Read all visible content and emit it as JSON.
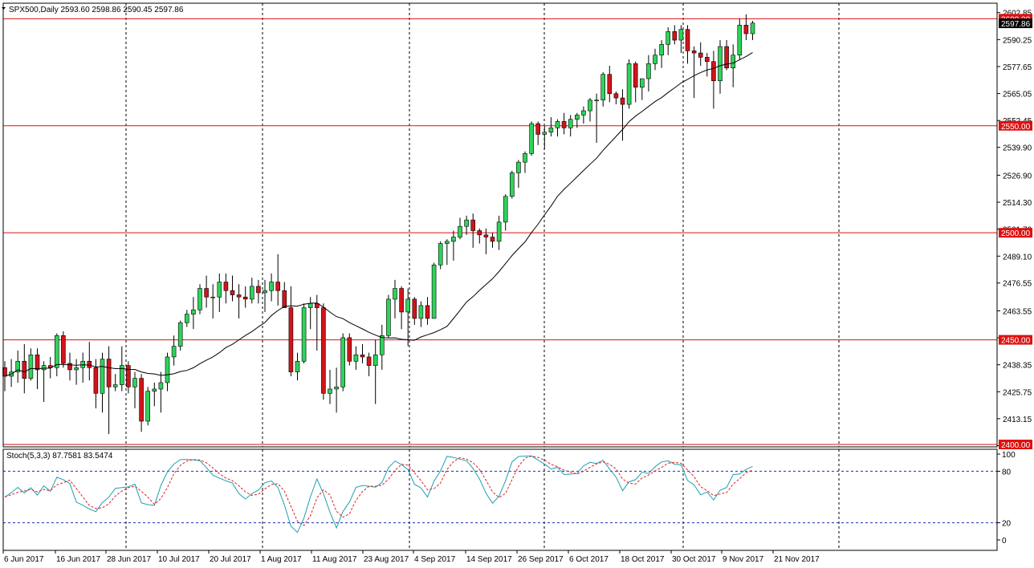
{
  "chart_data": [
    {
      "type": "candlestick",
      "title": "SPX500,Daily",
      "ohlc_label": "2593.60 2598.86 2590.45 2597.86",
      "ylim": [
        2400.0,
        2605.0
      ],
      "yticks": [
        "2602.85",
        "2590.25",
        "2577.65",
        "2565.05",
        "2552.45",
        "2539.90",
        "2526.90",
        "2514.30",
        "2501.70",
        "2489.10",
        "2476.55",
        "2463.55",
        "2450.95",
        "2438.35",
        "2425.75",
        "2413.15",
        "2400.55"
      ],
      "y_tick_values": [
        2602.85,
        2590.25,
        2577.65,
        2565.05,
        2552.45,
        2539.9,
        2526.9,
        2514.3,
        2501.7,
        2489.1,
        2476.55,
        2463.55,
        2450.95,
        2438.35,
        2425.75,
        2413.15,
        2400.55
      ],
      "hlines": [
        {
          "value": 2600.0,
          "label": "2600.00"
        },
        {
          "value": 2550.0,
          "label": "2550.00"
        },
        {
          "value": 2500.0,
          "label": "2500.00"
        },
        {
          "value": 2450.0,
          "label": "2450.00"
        },
        {
          "value": 2400.0,
          "label": "2400.00"
        }
      ],
      "current_price_label": "2597.86",
      "xlabels": [
        "6 Jun 2017",
        "16 Jun 2017",
        "28 Jun 2017",
        "10 Jul 2017",
        "20 Jul 2017",
        "1 Aug 2017",
        "11 Aug 2017",
        "23 Aug 2017",
        "4 Sep 2017",
        "14 Sep 2017",
        "26 Sep 2017",
        "6 Oct 2017",
        "18 Oct 2017",
        "30 Oct 2017",
        "9 Nov 2017",
        "21 Nov 2017"
      ],
      "ohlc": [
        [
          2437,
          2440,
          2426,
          2433
        ],
        [
          2433,
          2441,
          2428,
          2435
        ],
        [
          2435,
          2445,
          2430,
          2440
        ],
        [
          2440,
          2448,
          2425,
          2432
        ],
        [
          2432,
          2446,
          2431,
          2443
        ],
        [
          2443,
          2446,
          2427,
          2436
        ],
        [
          2436,
          2440,
          2421,
          2438
        ],
        [
          2438,
          2442,
          2432,
          2437
        ],
        [
          2437,
          2453,
          2433,
          2452
        ],
        [
          2452,
          2454,
          2437,
          2439
        ],
        [
          2439,
          2444,
          2431,
          2436
        ],
        [
          2436,
          2441,
          2429,
          2437
        ],
        [
          2437,
          2444,
          2430,
          2440
        ],
        [
          2440,
          2449,
          2431,
          2437
        ],
        [
          2437,
          2441,
          2418,
          2425
        ],
        [
          2425,
          2444,
          2416,
          2441
        ],
        [
          2441,
          2447,
          2406,
          2428
        ],
        [
          2428,
          2434,
          2426,
          2429
        ],
        [
          2429,
          2447,
          2426,
          2438
        ],
        [
          2438,
          2440,
          2425,
          2428
        ],
        [
          2428,
          2435,
          2418,
          2432
        ],
        [
          2432,
          2434,
          2407,
          2412
        ],
        [
          2412,
          2428,
          2410,
          2426
        ],
        [
          2426,
          2430,
          2419,
          2427
        ],
        [
          2427,
          2435,
          2416,
          2430
        ],
        [
          2430,
          2444,
          2426,
          2442
        ],
        [
          2442,
          2452,
          2438,
          2447
        ],
        [
          2447,
          2459,
          2445,
          2458
        ],
        [
          2458,
          2464,
          2456,
          2462
        ],
        [
          2462,
          2470,
          2455,
          2464
        ],
        [
          2464,
          2476,
          2462,
          2474
        ],
        [
          2474,
          2480,
          2465,
          2470
        ],
        [
          2470,
          2476,
          2460,
          2470
        ],
        [
          2470,
          2481,
          2463,
          2477
        ],
        [
          2477,
          2481,
          2467,
          2473
        ],
        [
          2473,
          2480,
          2468,
          2471
        ],
        [
          2471,
          2476,
          2460,
          2470
        ],
        [
          2470,
          2475,
          2465,
          2469
        ],
        [
          2469,
          2479,
          2467,
          2475
        ],
        [
          2475,
          2478,
          2467,
          2472
        ],
        [
          2472,
          2478,
          2463,
          2473
        ],
        [
          2473,
          2481,
          2468,
          2477
        ],
        [
          2477,
          2490,
          2466,
          2473
        ],
        [
          2473,
          2477,
          2466,
          2465
        ],
        [
          2465,
          2475,
          2433,
          2435
        ],
        [
          2435,
          2444,
          2431,
          2440
        ],
        [
          2440,
          2467,
          2439,
          2465
        ],
        [
          2465,
          2470,
          2455,
          2467
        ],
        [
          2467,
          2471,
          2445,
          2465
        ],
        [
          2465,
          2467,
          2422,
          2425
        ],
        [
          2425,
          2436,
          2420,
          2427
        ],
        [
          2427,
          2437,
          2416,
          2428
        ],
        [
          2428,
          2453,
          2426,
          2451
        ],
        [
          2451,
          2453,
          2438,
          2440
        ],
        [
          2440,
          2447,
          2436,
          2443
        ],
        [
          2443,
          2448,
          2439,
          2442
        ],
        [
          2442,
          2444,
          2433,
          2438
        ],
        [
          2438,
          2450,
          2420,
          2443
        ],
        [
          2443,
          2457,
          2436,
          2452
        ],
        [
          2452,
          2471,
          2451,
          2469
        ],
        [
          2469,
          2478,
          2460,
          2474
        ],
        [
          2474,
          2475,
          2455,
          2463
        ],
        [
          2463,
          2474,
          2447,
          2469
        ],
        [
          2469,
          2470,
          2457,
          2460
        ],
        [
          2460,
          2468,
          2456,
          2466
        ],
        [
          2466,
          2470,
          2457,
          2460
        ],
        [
          2460,
          2486,
          2460,
          2485
        ],
        [
          2485,
          2496,
          2483,
          2495
        ],
        [
          2495,
          2497,
          2485,
          2496
        ],
        [
          2496,
          2501,
          2487,
          2498
        ],
        [
          2498,
          2507,
          2497,
          2503
        ],
        [
          2503,
          2508,
          2499,
          2506
        ],
        [
          2506,
          2509,
          2493,
          2501
        ],
        [
          2501,
          2502,
          2495,
          2499
        ],
        [
          2499,
          2502,
          2490,
          2498
        ],
        [
          2498,
          2500,
          2493,
          2496
        ],
        [
          2496,
          2508,
          2492,
          2505
        ],
        [
          2505,
          2518,
          2501,
          2517
        ],
        [
          2517,
          2529,
          2516,
          2528
        ],
        [
          2528,
          2534,
          2521,
          2533
        ],
        [
          2533,
          2538,
          2528,
          2537
        ],
        [
          2537,
          2552,
          2536,
          2551
        ],
        [
          2551,
          2552,
          2541,
          2546
        ],
        [
          2546,
          2550,
          2539,
          2547
        ],
        [
          2547,
          2554,
          2545,
          2549
        ],
        [
          2549,
          2553,
          2545,
          2552
        ],
        [
          2552,
          2556,
          2546,
          2549
        ],
        [
          2549,
          2555,
          2545,
          2553
        ],
        [
          2553,
          2556,
          2549,
          2555
        ],
        [
          2555,
          2559,
          2551,
          2557
        ],
        [
          2557,
          2563,
          2552,
          2562
        ],
        [
          2562,
          2565,
          2542,
          2562
        ],
        [
          2562,
          2575,
          2559,
          2574
        ],
        [
          2574,
          2578,
          2561,
          2565
        ],
        [
          2565,
          2566,
          2560,
          2563
        ],
        [
          2563,
          2567,
          2543,
          2560
        ],
        [
          2560,
          2581,
          2558,
          2579
        ],
        [
          2579,
          2580,
          2561,
          2568
        ],
        [
          2568,
          2571,
          2562,
          2572
        ],
        [
          2572,
          2583,
          2566,
          2579
        ],
        [
          2579,
          2586,
          2576,
          2583
        ],
        [
          2583,
          2590,
          2577,
          2588
        ],
        [
          2588,
          2596,
          2583,
          2594
        ],
        [
          2594,
          2597,
          2588,
          2590
        ],
        [
          2590,
          2597,
          2584,
          2595
        ],
        [
          2595,
          2597,
          2579,
          2585
        ],
        [
          2585,
          2587,
          2563,
          2584
        ],
        [
          2584,
          2589,
          2578,
          2582
        ],
        [
          2582,
          2584,
          2573,
          2580
        ],
        [
          2580,
          2585,
          2558,
          2571
        ],
        [
          2571,
          2590,
          2565,
          2587
        ],
        [
          2587,
          2590,
          2576,
          2577
        ],
        [
          2577,
          2588,
          2568,
          2583
        ],
        [
          2583,
          2600,
          2581,
          2597
        ],
        [
          2597,
          2602,
          2590,
          2593
        ],
        [
          2593,
          2599,
          2590,
          2598
        ]
      ],
      "ma_period": 20,
      "grid": "vertical-dashed"
    },
    {
      "type": "line",
      "title": "Stoch(5,3,3) 87.7581 83.5474",
      "ylim": [
        0,
        100
      ],
      "yticks": [
        "100",
        "80",
        "20",
        "0"
      ],
      "y_tick_values": [
        100,
        80,
        20,
        0
      ],
      "levels": [
        80,
        20
      ],
      "series": [
        {
          "name": "main",
          "color": "#1e9fb0"
        },
        {
          "name": "signal",
          "color": "#dd2222"
        }
      ]
    }
  ],
  "colors": {
    "bull": "#2fd35a",
    "bear": "#d2141a",
    "hline": "#dd1111",
    "axis": "#000000",
    "grid": "#000000",
    "stoch_main": "#1e9fb0",
    "stoch_signal": "#dd2222",
    "level": "#1a2bb8"
  }
}
